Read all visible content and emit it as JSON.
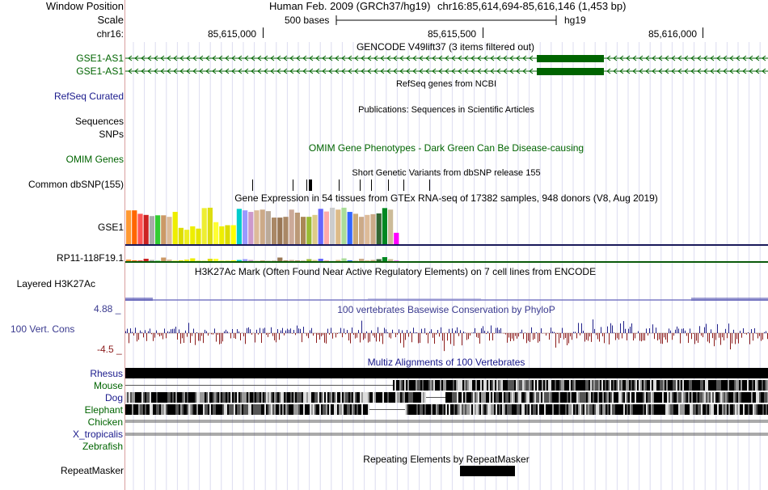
{
  "header": {
    "window_position_label": "Window Position",
    "scale_label": "Scale",
    "chrom_label": "chr16:",
    "assembly": "Human Feb. 2009 (GRCh37/hg19)",
    "position": "chr16:85,614,694-85,616,146 (1,453 bp)",
    "scale_text": "500 bases",
    "db": "hg19",
    "ticks": [
      "85,615,000",
      "85,615,500",
      "85,616,000"
    ]
  },
  "tracks": {
    "gencode": {
      "title": "GENCODE V49lift37 (3 items filtered out)",
      "item1": "GSE1-AS1",
      "item2": "GSE1-AS1"
    },
    "refseq": {
      "title": "RefSeq genes from NCBI",
      "label": "RefSeq Curated"
    },
    "pubs": {
      "title": "Publications: Sequences in Scientific Articles",
      "label1": "Sequences",
      "label2": "SNPs"
    },
    "omim": {
      "title": "OMIM Gene Phenotypes - Dark Green Can Be Disease-causing",
      "label": "OMIM Genes"
    },
    "dbsnp": {
      "title": "Short Genetic Variants from dbSNP release 155",
      "label": "Common dbSNP(155)"
    },
    "gtex": {
      "title": "Gene Expression in 54 tissues from GTEx RNA-seq of 17382 samples, 948 donors (V8, Aug 2019)",
      "gene1": "GSE1",
      "gene2": "RP11-118F19.1",
      "bar_colors": [
        "#ff9933",
        "#ff6600",
        "#ff5555",
        "#cc2222",
        "#aaaaaa",
        "#33cc33",
        "#cc9966",
        "#ddbb99",
        "#eeee00",
        "#dddd00",
        "#eeee22",
        "#eeee00",
        "#e6e600",
        "#eeee33",
        "#dddd11",
        "#ffff33",
        "#eeee00",
        "#dddd00",
        "#ffff00",
        "#00cccc",
        "#9999ff",
        "#cc99cc",
        "#ddbb99",
        "#ccaa88",
        "#bbaa99",
        "#aa8866",
        "#997755",
        "#aa8866",
        "#ccaa99",
        "#bb9977",
        "#aa8855",
        "#99bb33",
        "#ddcc88",
        "#6666ff",
        "#ffaaaa",
        "#cccccc",
        "#ddbb88",
        "#aadd99",
        "#3366ff",
        "#ccaa77",
        "#ccaa88",
        "#ddbb99",
        "#ccaa88",
        "#336633",
        "#008822",
        "#ccbb99",
        "#ff00ff"
      ],
      "gse1_values": [
        0.89,
        0.89,
        0.8,
        0.77,
        0.74,
        0.76,
        0.76,
        0.72,
        0.85,
        0.43,
        0.38,
        0.47,
        0.41,
        0.95,
        0.96,
        0.58,
        0.47,
        0.5,
        0.5,
        0.93,
        0.89,
        0.85,
        0.89,
        0.91,
        0.87,
        0.7,
        0.7,
        0.72,
        0.91,
        0.83,
        0.72,
        0.72,
        0.77,
        0.93,
        0.86,
        0.96,
        0.91,
        0.96,
        0.85,
        0.8,
        0.72,
        0.77,
        0.79,
        0.81,
        0.95,
        0.91,
        0.3
      ],
      "rp11_values": [
        0.4,
        0.2,
        0.2,
        0.6,
        0.3,
        0.1,
        0.9,
        0.4,
        0.1,
        0.2,
        0.4,
        0.7,
        0.1,
        0.1,
        0.6,
        0.6,
        0.1,
        0.1,
        0.2,
        0.3,
        0.5,
        0.3,
        0.1,
        0.2,
        0.1,
        0.1,
        0.9,
        0.2,
        0.3,
        0.2,
        0.1,
        0.5,
        0.3,
        0.6,
        0.2,
        0.1,
        0.3,
        0.7,
        0.2,
        0.1,
        0.6,
        0.2,
        0.3,
        0.5,
        1.0,
        0.5,
        0.1
      ]
    },
    "h3k27ac": {
      "title": "H3K27Ac Mark (Often Found Near Active Regulatory Elements) on 7 cell lines from ENCODE",
      "label": "Layered H3K27Ac"
    },
    "phylop": {
      "title": "100 vertebrates Basewise Conservation by PhyloP",
      "label": "100 Vert. Cons",
      "max": "4.88 _",
      "min": "-4.5 _"
    },
    "multiz": {
      "title": "Multiz Alignments of 100 Vertebrates",
      "species": [
        "Rhesus",
        "Mouse",
        "Dog",
        "Elephant",
        "Chicken",
        "X_tropicalis",
        "Zebrafish"
      ]
    },
    "rmsk": {
      "title": "Repeating Elements by RepeatMasker",
      "label": "RepeatMasker"
    }
  },
  "colors": {
    "gene_green": "#006400",
    "navy": "#1a1a8c",
    "phylop_pos": "#20208a",
    "phylop_neg": "#8b1a1a",
    "blue_line": "#5a64a0"
  }
}
